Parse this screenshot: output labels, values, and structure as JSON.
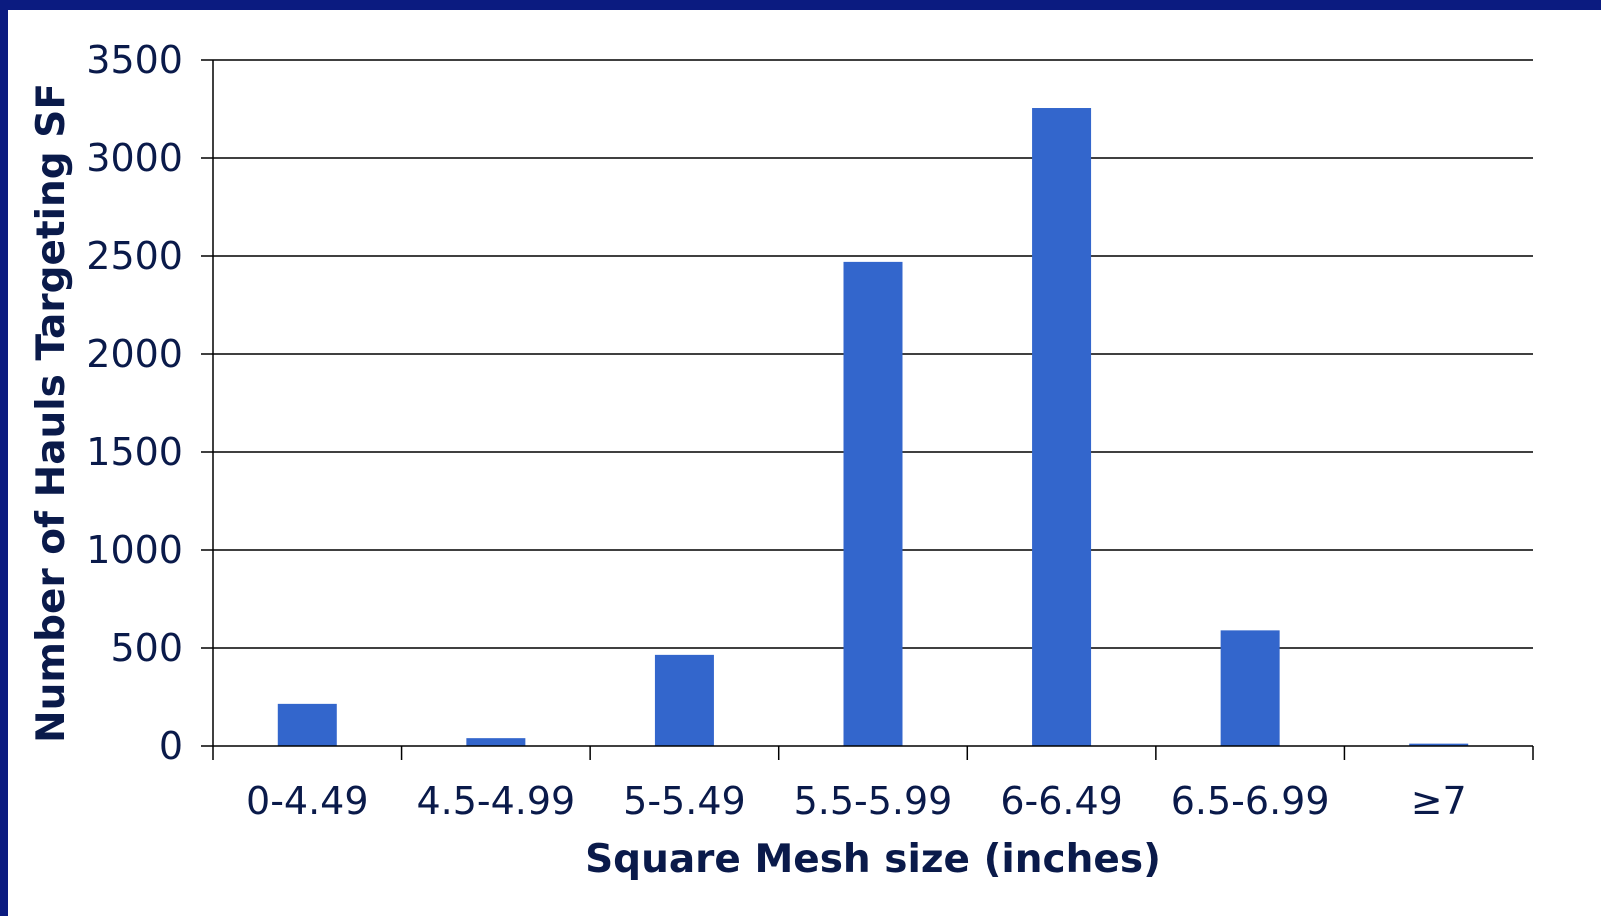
{
  "colors": {
    "bar": "#3366cc",
    "frame": "#0b1b80",
    "gridline": "#000000",
    "text": "#0a1a4a"
  },
  "chart_data": {
    "type": "bar",
    "categories": [
      "0-4.49",
      "4.5-4.99",
      "5-5.49",
      "5.5-5.99",
      "6-6.49",
      "6.5-6.99",
      "≥7"
    ],
    "values": [
      215,
      40,
      465,
      2470,
      3255,
      590,
      12
    ],
    "title": "",
    "xlabel": "Square Mesh size (inches)",
    "ylabel": "Number of Hauls Targeting SF",
    "ylim": [
      0,
      3500
    ],
    "yticks": [
      0,
      500,
      1000,
      1500,
      2000,
      2500,
      3000,
      3500
    ],
    "ytick_labels": [
      "0",
      "500",
      "1000",
      "1500",
      "2000",
      "2500",
      "3000",
      "3500"
    ],
    "grid": true,
    "legend": "none"
  }
}
